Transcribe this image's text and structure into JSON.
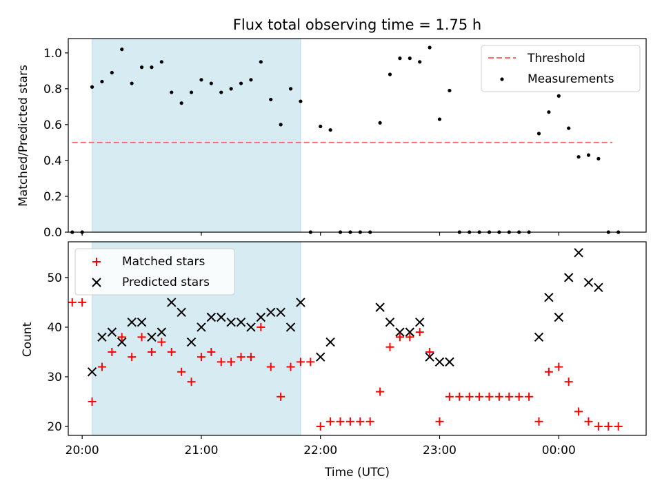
{
  "title": "Flux total observing time = 1.75 h",
  "colors": {
    "shade": "#add8e6",
    "threshold": "#ff6b6b",
    "measurement": "#000000",
    "matched": "#ff0000",
    "predicted": "#000000"
  },
  "chart_data": [
    {
      "type": "scatter",
      "ylabel": "Matched/Predicted stars",
      "ylim": [
        0,
        1.08
      ],
      "yticks": [
        "0.0",
        "0.2",
        "0.4",
        "0.6",
        "0.8",
        "1.0"
      ],
      "xlim": [
        "19:53",
        "00:44"
      ],
      "shaded_interval": [
        "20:05",
        "21:50"
      ],
      "legend": {
        "placement": "top-right",
        "entries": [
          "Threshold",
          "Measurements"
        ]
      },
      "threshold": {
        "name": "Threshold",
        "y": 0.5,
        "x": [
          "19:55",
          "00:27"
        ]
      },
      "series": [
        {
          "name": "Measurements",
          "points": [
            [
              "19:55",
              0.0
            ],
            [
              "20:00",
              0.0
            ],
            [
              "20:05",
              0.81
            ],
            [
              "20:10",
              0.84
            ],
            [
              "20:15",
              0.89
            ],
            [
              "20:20",
              1.02
            ],
            [
              "20:25",
              0.83
            ],
            [
              "20:30",
              0.92
            ],
            [
              "20:35",
              0.92
            ],
            [
              "20:40",
              0.95
            ],
            [
              "20:45",
              0.78
            ],
            [
              "20:50",
              0.72
            ],
            [
              "20:55",
              0.78
            ],
            [
              "21:00",
              0.85
            ],
            [
              "21:05",
              0.83
            ],
            [
              "21:10",
              0.78
            ],
            [
              "21:15",
              0.8
            ],
            [
              "21:20",
              0.83
            ],
            [
              "21:25",
              0.85
            ],
            [
              "21:30",
              0.95
            ],
            [
              "21:35",
              0.74
            ],
            [
              "21:40",
              0.6
            ],
            [
              "21:45",
              0.8
            ],
            [
              "21:50",
              0.73
            ],
            [
              "21:55",
              0.0
            ],
            [
              "22:00",
              0.59
            ],
            [
              "22:05",
              0.57
            ],
            [
              "22:10",
              0.0
            ],
            [
              "22:15",
              0.0
            ],
            [
              "22:20",
              0.0
            ],
            [
              "22:25",
              0.0
            ],
            [
              "22:30",
              0.61
            ],
            [
              "22:35",
              0.88
            ],
            [
              "22:40",
              0.97
            ],
            [
              "22:45",
              0.97
            ],
            [
              "22:50",
              0.95
            ],
            [
              "22:55",
              1.03
            ],
            [
              "23:00",
              0.63
            ],
            [
              "23:05",
              0.79
            ],
            [
              "23:10",
              0.0
            ],
            [
              "23:15",
              0.0
            ],
            [
              "23:20",
              0.0
            ],
            [
              "23:25",
              0.0
            ],
            [
              "23:30",
              0.0
            ],
            [
              "23:35",
              0.0
            ],
            [
              "23:40",
              0.0
            ],
            [
              "23:45",
              0.0
            ],
            [
              "23:50",
              0.55
            ],
            [
              "23:55",
              0.67
            ],
            [
              "00:00",
              0.76
            ],
            [
              "00:05",
              0.58
            ],
            [
              "00:10",
              0.42
            ],
            [
              "00:15",
              0.43
            ],
            [
              "00:20",
              0.41
            ],
            [
              "00:25",
              0.0
            ],
            [
              "00:30",
              0.0
            ]
          ]
        }
      ]
    },
    {
      "type": "scatter",
      "xlabel": "Time (UTC)",
      "ylabel": "Count",
      "ylim": [
        18.2,
        57.2
      ],
      "yticks": [
        "20",
        "30",
        "40",
        "50"
      ],
      "xticks": [
        "20:00",
        "21:00",
        "22:00",
        "23:00",
        "00:00"
      ],
      "xlim": [
        "19:53",
        "00:44"
      ],
      "shaded_interval": [
        "20:05",
        "21:50"
      ],
      "legend": {
        "placement": "top-left",
        "entries": [
          "Matched stars",
          "Predicted stars"
        ]
      },
      "series": [
        {
          "name": "Matched stars",
          "marker": "+",
          "points": [
            [
              "19:55",
              45
            ],
            [
              "20:00",
              45
            ],
            [
              "20:05",
              25
            ],
            [
              "20:10",
              32
            ],
            [
              "20:15",
              35
            ],
            [
              "20:20",
              38
            ],
            [
              "20:25",
              34
            ],
            [
              "20:30",
              38
            ],
            [
              "20:35",
              35
            ],
            [
              "20:40",
              37
            ],
            [
              "20:45",
              35
            ],
            [
              "20:50",
              31
            ],
            [
              "20:55",
              29
            ],
            [
              "21:00",
              34
            ],
            [
              "21:05",
              35
            ],
            [
              "21:10",
              33
            ],
            [
              "21:15",
              33
            ],
            [
              "21:20",
              34
            ],
            [
              "21:25",
              34
            ],
            [
              "21:30",
              40
            ],
            [
              "21:35",
              32
            ],
            [
              "21:40",
              26
            ],
            [
              "21:45",
              32
            ],
            [
              "21:50",
              33
            ],
            [
              "21:55",
              33
            ],
            [
              "22:00",
              20
            ],
            [
              "22:05",
              21
            ],
            [
              "22:10",
              21
            ],
            [
              "22:15",
              21
            ],
            [
              "22:20",
              21
            ],
            [
              "22:25",
              21
            ],
            [
              "22:30",
              27
            ],
            [
              "22:35",
              36
            ],
            [
              "22:40",
              38
            ],
            [
              "22:45",
              38
            ],
            [
              "22:50",
              39
            ],
            [
              "22:55",
              35
            ],
            [
              "23:00",
              21
            ],
            [
              "23:05",
              26
            ],
            [
              "23:10",
              26
            ],
            [
              "23:15",
              26
            ],
            [
              "23:20",
              26
            ],
            [
              "23:25",
              26
            ],
            [
              "23:30",
              26
            ],
            [
              "23:35",
              26
            ],
            [
              "23:40",
              26
            ],
            [
              "23:45",
              26
            ],
            [
              "23:50",
              21
            ],
            [
              "23:55",
              31
            ],
            [
              "00:00",
              32
            ],
            [
              "00:05",
              29
            ],
            [
              "00:10",
              23
            ],
            [
              "00:15",
              21
            ],
            [
              "00:20",
              20
            ],
            [
              "00:25",
              20
            ],
            [
              "00:30",
              20
            ]
          ]
        },
        {
          "name": "Predicted stars",
          "marker": "x",
          "points": [
            [
              "20:05",
              31
            ],
            [
              "20:10",
              38
            ],
            [
              "20:15",
              39
            ],
            [
              "20:20",
              37
            ],
            [
              "20:25",
              41
            ],
            [
              "20:30",
              41
            ],
            [
              "20:35",
              38
            ],
            [
              "20:40",
              39
            ],
            [
              "20:45",
              45
            ],
            [
              "20:50",
              43
            ],
            [
              "20:55",
              37
            ],
            [
              "21:00",
              40
            ],
            [
              "21:05",
              42
            ],
            [
              "21:10",
              42
            ],
            [
              "21:15",
              41
            ],
            [
              "21:20",
              41
            ],
            [
              "21:25",
              40
            ],
            [
              "21:30",
              42
            ],
            [
              "21:35",
              43
            ],
            [
              "21:40",
              43
            ],
            [
              "21:45",
              40
            ],
            [
              "21:50",
              45
            ],
            [
              "22:00",
              34
            ],
            [
              "22:05",
              37
            ],
            [
              "22:30",
              44
            ],
            [
              "22:35",
              41
            ],
            [
              "22:40",
              39
            ],
            [
              "22:45",
              39
            ],
            [
              "22:50",
              41
            ],
            [
              "22:55",
              34
            ],
            [
              "23:00",
              33
            ],
            [
              "23:05",
              33
            ],
            [
              "23:50",
              38
            ],
            [
              "23:55",
              46
            ],
            [
              "00:00",
              42
            ],
            [
              "00:05",
              50
            ],
            [
              "00:10",
              55
            ],
            [
              "00:15",
              49
            ],
            [
              "00:20",
              48
            ]
          ]
        }
      ]
    }
  ]
}
